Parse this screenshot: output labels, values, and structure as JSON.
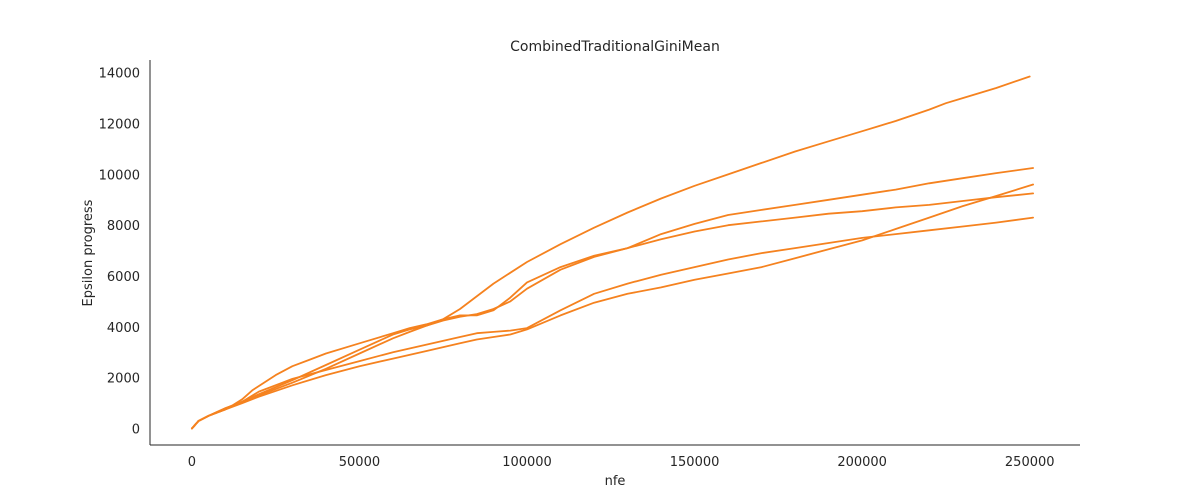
{
  "chart_data": {
    "type": "line",
    "title": "CombinedTraditionalGiniMean",
    "xlabel": "nfe",
    "ylabel": "Epsilon progress",
    "xlim": [
      -12500,
      265000
    ],
    "ylim": [
      -650,
      14500
    ],
    "xticks": [
      0,
      50000,
      100000,
      150000,
      200000,
      250000
    ],
    "yticks": [
      0,
      2000,
      4000,
      6000,
      8000,
      10000,
      12000,
      14000
    ],
    "grid": false,
    "line_color": "#f5821f",
    "series": [
      {
        "x": [
          0,
          2000,
          5000,
          10000,
          12000,
          15000,
          18000,
          25000,
          30000,
          35000,
          40000,
          50000,
          60000,
          65000,
          70000,
          75000,
          80000,
          90000,
          100000,
          110000,
          120000,
          130000,
          140000,
          150000,
          160000,
          170000,
          180000,
          190000,
          200000,
          210000,
          220000,
          225000,
          230000,
          240000,
          250000
        ],
        "y": [
          0,
          300,
          500,
          750,
          900,
          1150,
          1500,
          2100,
          2450,
          2700,
          2950,
          3350,
          3750,
          3950,
          4100,
          4300,
          4700,
          5700,
          6550,
          7250,
          7900,
          8500,
          9050,
          9550,
          10000,
          10450,
          10900,
          11300,
          11700,
          12100,
          12550,
          12800,
          13000,
          13400,
          13850
        ]
      },
      {
        "x": [
          0,
          2000,
          5000,
          10000,
          15000,
          20000,
          30000,
          40000,
          50000,
          60000,
          65000,
          70000,
          75000,
          80000,
          85000,
          90000,
          95000,
          100000,
          110000,
          120000,
          130000,
          140000,
          150000,
          160000,
          170000,
          180000,
          190000,
          200000,
          210000,
          220000,
          230000,
          240000,
          251000
        ],
        "y": [
          0,
          300,
          500,
          800,
          1050,
          1300,
          1800,
          2350,
          2950,
          3550,
          3800,
          4050,
          4250,
          4400,
          4500,
          4700,
          5000,
          5500,
          6250,
          6750,
          7100,
          7450,
          7750,
          8000,
          8150,
          8300,
          8450,
          8550,
          8700,
          8800,
          8950,
          9100,
          9250
        ]
      },
      {
        "x": [
          0,
          2000,
          5000,
          10000,
          15000,
          20000,
          30000,
          40000,
          50000,
          60000,
          65000,
          70000,
          75000,
          80000,
          85000,
          90000,
          95000,
          100000,
          110000,
          120000,
          130000,
          140000,
          150000,
          160000,
          170000,
          180000,
          190000,
          200000,
          210000,
          220000,
          230000,
          240000,
          251000
        ],
        "y": [
          0,
          300,
          500,
          800,
          1050,
          1350,
          1900,
          2500,
          3100,
          3700,
          3900,
          4050,
          4300,
          4450,
          4450,
          4650,
          5150,
          5750,
          6350,
          6800,
          7100,
          7650,
          8050,
          8400,
          8600,
          8800,
          9000,
          9200,
          9400,
          9650,
          9850,
          10050,
          10250
        ]
      },
      {
        "x": [
          0,
          2000,
          5000,
          10000,
          15000,
          20000,
          30000,
          40000,
          50000,
          60000,
          70000,
          80000,
          85000,
          90000,
          95000,
          100000,
          110000,
          120000,
          130000,
          140000,
          150000,
          160000,
          170000,
          180000,
          190000,
          200000,
          210000,
          220000,
          230000,
          240000,
          251000
        ],
        "y": [
          0,
          300,
          500,
          750,
          1000,
          1250,
          1700,
          2100,
          2450,
          2750,
          3050,
          3350,
          3500,
          3600,
          3700,
          3900,
          4450,
          4950,
          5300,
          5550,
          5850,
          6100,
          6350,
          6700,
          7050,
          7400,
          7850,
          8300,
          8750,
          9150,
          9600
        ]
      },
      {
        "x": [
          0,
          2000,
          5000,
          10000,
          15000,
          20000,
          30000,
          40000,
          50000,
          60000,
          70000,
          80000,
          85000,
          90000,
          95000,
          100000,
          110000,
          120000,
          130000,
          140000,
          150000,
          160000,
          170000,
          180000,
          190000,
          200000,
          210000,
          220000,
          230000,
          240000,
          251000
        ],
        "y": [
          0,
          300,
          500,
          750,
          1050,
          1450,
          1950,
          2300,
          2650,
          3000,
          3300,
          3600,
          3750,
          3800,
          3850,
          3950,
          4650,
          5300,
          5700,
          6050,
          6350,
          6650,
          6900,
          7100,
          7300,
          7500,
          7650,
          7800,
          7950,
          8100,
          8300
        ]
      }
    ]
  }
}
